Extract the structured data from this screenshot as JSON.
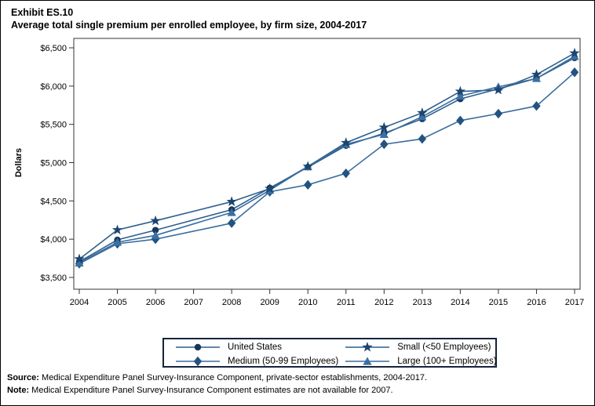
{
  "title": {
    "line1": "Exhibit ES.10",
    "line2": "Average total single premium per enrolled employee, by firm size, 2004-2017"
  },
  "footer": {
    "source_label": "Source:",
    "source_text": " Medical Expenditure Panel Survey-Insurance Component, private-sector establishments, 2004-2017.",
    "note_label": "Note:",
    "note_text": " Medical Expenditure Panel Survey-Insurance Component estimates are not available for 2007."
  },
  "chart_data": {
    "type": "line",
    "title": "Average total single premium per enrolled employee, by firm size, 2004-2017",
    "xlabel": "",
    "ylabel": "Dollars",
    "x": [
      "2004",
      "2005",
      "2006",
      "2007",
      "2008",
      "2009",
      "2010",
      "2011",
      "2012",
      "2013",
      "2014",
      "2015",
      "2016",
      "2017"
    ],
    "ylim": [
      3500,
      6500
    ],
    "ytick_step": 500,
    "yticks": [
      "$3,500",
      "$4,000",
      "$4,500",
      "$5,000",
      "$5,500",
      "$6,000",
      "$6,500"
    ],
    "grid": false,
    "legend_position": "bottom",
    "missing_data_years": [
      "2007"
    ],
    "axis_color": "#333333",
    "series": [
      {
        "name": "United States",
        "marker": "circle",
        "marker_color": "#16365c",
        "line_color": "#2c5f8e",
        "values": [
          3705,
          3991,
          4118,
          null,
          4386,
          4669,
          4940,
          5222,
          5384,
          5571,
          5832,
          5963,
          6101,
          6368
        ]
      },
      {
        "name": "Medium (50-99 Employees)",
        "marker": "diamond",
        "marker_color": "#235380",
        "line_color": "#3a6d9e",
        "values": [
          3680,
          3940,
          4000,
          null,
          4210,
          4620,
          4710,
          4860,
          5240,
          5310,
          5550,
          5640,
          5740,
          6180
        ]
      },
      {
        "name": "Small (<50 Employees)",
        "marker": "star",
        "marker_color": "#1c4570",
        "line_color": "#2c5f8e",
        "values": [
          3740,
          4120,
          4240,
          null,
          4490,
          4660,
          4950,
          5260,
          5460,
          5650,
          5930,
          5950,
          6150,
          6430
        ]
      },
      {
        "name": "Large (100+ Employees)",
        "marker": "triangle",
        "marker_color": "#3a70a3",
        "line_color": "#3a6d9e",
        "values": [
          3690,
          3960,
          4050,
          null,
          4350,
          4640,
          4950,
          5240,
          5370,
          5600,
          5870,
          5990,
          6100,
          6390
        ]
      }
    ]
  }
}
